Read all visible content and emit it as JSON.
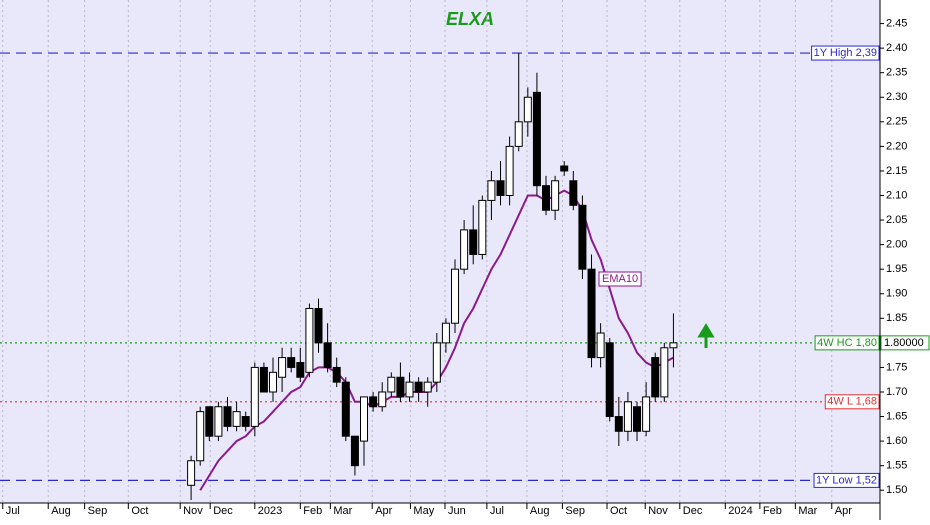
{
  "chart_data": {
    "type": "candlestick",
    "title": "ELXA",
    "title_color": "#1a9a1a",
    "xlim": [
      0,
      96.7
    ],
    "ylim": [
      1.474,
      2.498
    ],
    "grid": true,
    "xticks": [
      {
        "value": 0.3,
        "label": "Jul"
      },
      {
        "value": 5.3,
        "label": "Aug"
      },
      {
        "value": 9.3,
        "label": "Sep"
      },
      {
        "value": 14.1,
        "label": "Oct"
      },
      {
        "value": 19.8,
        "label": "Nov"
      },
      {
        "value": 23.1,
        "label": "Dec"
      },
      {
        "value": 28,
        "label": "2023"
      },
      {
        "value": 33,
        "label": "Feb"
      },
      {
        "value": 36.3,
        "label": "Mar"
      },
      {
        "value": 40.9,
        "label": "Apr"
      },
      {
        "value": 45.1,
        "label": "May"
      },
      {
        "value": 48.9,
        "label": "Jun"
      },
      {
        "value": 53.5,
        "label": "Jul"
      },
      {
        "value": 57.9,
        "label": "Aug"
      },
      {
        "value": 61.8,
        "label": "Sep"
      },
      {
        "value": 66.7,
        "label": "Oct"
      },
      {
        "value": 70.9,
        "label": "Nov"
      },
      {
        "value": 74.7,
        "label": "Dec"
      },
      {
        "value": 79.7,
        "label": "2024"
      },
      {
        "value": 83.5,
        "label": "Feb"
      },
      {
        "value": 87.4,
        "label": "Mar"
      },
      {
        "value": 91.4,
        "label": "Apr"
      }
    ],
    "yticks": [
      {
        "value": 1.5,
        "label": "1.50"
      },
      {
        "value": 1.55,
        "label": "1.55"
      },
      {
        "value": 1.6,
        "label": "1.60"
      },
      {
        "value": 1.65,
        "label": "1.65"
      },
      {
        "value": 1.7,
        "label": "1.70"
      },
      {
        "value": 1.75,
        "label": "1.75"
      },
      {
        "value": 1.8,
        "label": "1.80"
      },
      {
        "value": 1.85,
        "label": "1.85"
      },
      {
        "value": 1.9,
        "label": "1.90"
      },
      {
        "value": 1.95,
        "label": "1.95"
      },
      {
        "value": 2.0,
        "label": "2.00"
      },
      {
        "value": 2.05,
        "label": "2.05"
      },
      {
        "value": 2.1,
        "label": "2.10"
      },
      {
        "value": 2.15,
        "label": "2.15"
      },
      {
        "value": 2.2,
        "label": "2.20"
      },
      {
        "value": 2.25,
        "label": "2.25"
      },
      {
        "value": 2.3,
        "label": "2.30"
      },
      {
        "value": 2.35,
        "label": "2.35"
      },
      {
        "value": 2.4,
        "label": "2.40"
      },
      {
        "value": 2.45,
        "label": "2.45"
      }
    ],
    "candles": {
      "x": [
        21,
        22,
        23,
        24,
        25,
        26,
        27,
        28,
        29,
        30,
        31,
        32,
        33,
        34,
        35,
        36,
        37,
        38,
        39,
        40,
        41,
        42,
        43,
        44,
        45,
        46,
        47,
        48,
        49,
        50,
        51,
        52,
        53,
        54,
        55,
        56,
        57,
        58,
        59,
        60,
        61,
        62,
        63,
        64,
        65,
        66,
        67,
        68,
        69,
        70,
        71,
        72,
        73,
        74
      ],
      "open": [
        1.51,
        1.56,
        1.67,
        1.61,
        1.67,
        1.63,
        1.65,
        1.63,
        1.75,
        1.7,
        1.73,
        1.77,
        1.76,
        1.74,
        1.87,
        1.8,
        1.75,
        1.72,
        1.61,
        1.6,
        1.69,
        1.67,
        1.7,
        1.73,
        1.69,
        1.72,
        1.7,
        1.72,
        1.8,
        1.84,
        1.95,
        2.03,
        1.98,
        2.09,
        2.13,
        2.1,
        2.2,
        2.25,
        2.31,
        2.12,
        2.07,
        2.16,
        2.13,
        2.08,
        1.95,
        1.77,
        1.8,
        1.65,
        1.62,
        1.67,
        1.62,
        1.77,
        1.69,
        1.79
      ],
      "high": [
        1.57,
        1.67,
        1.67,
        1.68,
        1.69,
        1.68,
        1.66,
        1.76,
        1.76,
        1.77,
        1.79,
        1.79,
        1.79,
        1.88,
        1.89,
        1.84,
        1.77,
        1.73,
        1.61,
        1.69,
        1.7,
        1.72,
        1.74,
        1.76,
        1.74,
        1.73,
        1.73,
        1.82,
        1.85,
        1.97,
        2.05,
        2.08,
        2.1,
        2.15,
        2.17,
        2.22,
        2.39,
        2.32,
        2.35,
        2.14,
        2.14,
        2.17,
        2.15,
        2.1,
        1.98,
        1.84,
        1.81,
        1.69,
        1.7,
        1.68,
        1.72,
        1.78,
        1.8,
        1.86
      ],
      "low": [
        1.48,
        1.55,
        1.6,
        1.6,
        1.62,
        1.62,
        1.62,
        1.61,
        1.7,
        1.68,
        1.7,
        1.74,
        1.72,
        1.73,
        1.78,
        1.74,
        1.71,
        1.6,
        1.53,
        1.55,
        1.66,
        1.66,
        1.69,
        1.68,
        1.68,
        1.68,
        1.67,
        1.7,
        1.78,
        1.82,
        1.94,
        1.96,
        1.97,
        2.05,
        2.08,
        2.08,
        2.19,
        2.22,
        2.1,
        2.06,
        2.05,
        2.14,
        2.07,
        1.93,
        1.75,
        1.75,
        1.64,
        1.59,
        1.6,
        1.6,
        1.61,
        1.68,
        1.68,
        1.75
      ],
      "close": [
        1.56,
        1.66,
        1.61,
        1.67,
        1.63,
        1.66,
        1.63,
        1.75,
        1.7,
        1.74,
        1.77,
        1.75,
        1.73,
        1.87,
        1.8,
        1.75,
        1.72,
        1.61,
        1.55,
        1.69,
        1.67,
        1.7,
        1.73,
        1.69,
        1.72,
        1.7,
        1.72,
        1.8,
        1.84,
        1.95,
        2.03,
        1.98,
        2.09,
        2.13,
        2.1,
        2.2,
        2.25,
        2.3,
        2.12,
        2.07,
        2.13,
        2.15,
        2.08,
        1.95,
        1.77,
        1.82,
        1.65,
        1.62,
        1.68,
        1.62,
        1.69,
        1.69,
        1.79,
        1.8
      ]
    },
    "series": [
      {
        "name": "EMA10",
        "color": "#8b1a8b",
        "values": [
          null,
          1.5,
          1.53,
          1.56,
          1.58,
          1.6,
          1.61,
          1.63,
          1.64,
          1.66,
          1.68,
          1.7,
          1.71,
          1.74,
          1.75,
          1.75,
          1.74,
          1.72,
          1.68,
          1.68,
          1.67,
          1.68,
          1.69,
          1.69,
          1.7,
          1.7,
          1.7,
          1.72,
          1.75,
          1.79,
          1.84,
          1.87,
          1.91,
          1.95,
          1.98,
          2.02,
          2.06,
          2.1,
          2.1,
          2.09,
          2.1,
          2.11,
          2.1,
          2.07,
          2.01,
          1.97,
          1.91,
          1.85,
          1.82,
          1.78,
          1.76,
          1.75,
          1.76,
          1.77
        ]
      }
    ],
    "levels": [
      {
        "value": 2.39,
        "label": "1Y High 2,39",
        "color": "#2a2ad0",
        "dash": "10,6"
      },
      {
        "value": 1.8,
        "label": "4W HC 1,80",
        "color": "#1a9a1a",
        "dash": "2,3"
      },
      {
        "value": 1.68,
        "label": "4W L 1,68",
        "color": "#e03030",
        "dash": "2,3"
      },
      {
        "value": 1.52,
        "label": "1Y Low 1,52",
        "color": "#2a2ad0",
        "dash": "10,6"
      }
    ],
    "price_label": {
      "value": 1.8,
      "label": "1.80000"
    }
  }
}
